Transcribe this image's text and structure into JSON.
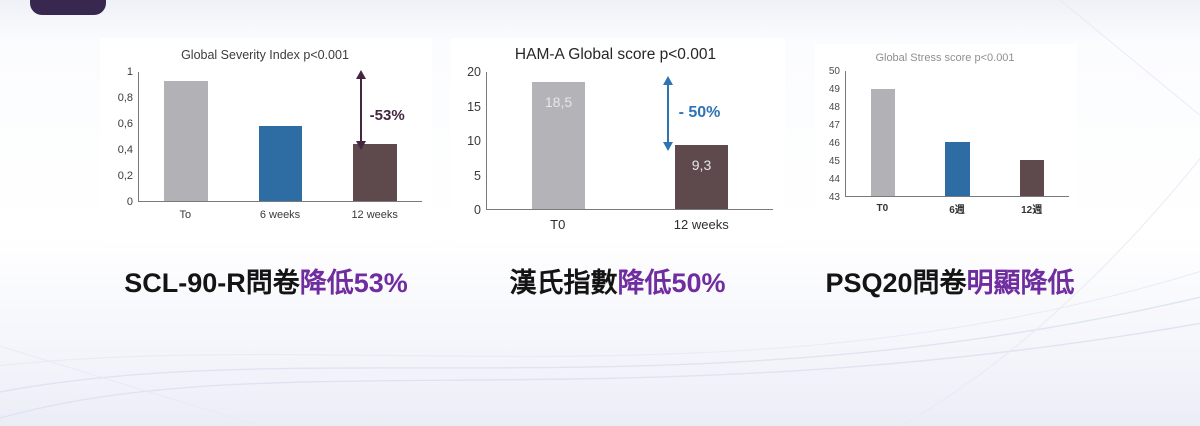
{
  "colors": {
    "highlight_purple": "#6f2da0",
    "corner_tab": "#38284f",
    "bar_gray": "#b2b2b6",
    "bar_blue": "#2e6da4",
    "bar_brown": "#5e4a4c"
  },
  "chart_data": [
    {
      "type": "bar",
      "title": "Global Severity Index p<0.001",
      "categories": [
        "To",
        "6 weeks",
        "12 weeks"
      ],
      "values": [
        0.93,
        0.58,
        0.44
      ],
      "bar_colors": [
        "#b2b2b6",
        "#2e6da4",
        "#5e4a4c"
      ],
      "ylim": [
        0,
        1
      ],
      "yticks": [
        "1",
        "0,8",
        "0,6",
        "0,4",
        "0,2",
        "0"
      ],
      "grid": "off",
      "annotation": {
        "text": "-53%",
        "color": "#452641",
        "from": 0.95,
        "to": 0.46
      }
    },
    {
      "type": "bar",
      "title": "HAM-A Global score p<0.001",
      "categories": [
        "T0",
        "12 weeks"
      ],
      "values": [
        18.5,
        9.3
      ],
      "bar_labels": [
        "18,5",
        "9,3"
      ],
      "bar_colors": [
        "#b4b3b7",
        "#5e4a4c"
      ],
      "ylim": [
        0,
        20
      ],
      "yticks": [
        "20",
        "15",
        "10",
        "5",
        "0"
      ],
      "grid": "off",
      "annotation": {
        "text": "- 50%",
        "color": "#2e74b5",
        "from": 18.3,
        "to": 9.8
      }
    },
    {
      "type": "bar",
      "title": "Global Stress score p<0.001",
      "categories": [
        "T0",
        "6週",
        "12週"
      ],
      "values": [
        49,
        46,
        45
      ],
      "bar_colors": [
        "#b2b2b6",
        "#2e6da4",
        "#5e4a4c"
      ],
      "ylim": [
        43,
        50
      ],
      "yticks": [
        "50",
        "49",
        "48",
        "47",
        "46",
        "45",
        "44",
        "43"
      ],
      "grid": "off"
    }
  ],
  "captions": [
    {
      "prefix": "SCL-90-R問卷",
      "highlight": "降低53%"
    },
    {
      "prefix": "漢氏指數",
      "highlight": "降低50%"
    },
    {
      "prefix": "PSQ20問卷",
      "highlight": "明顯降低"
    }
  ]
}
